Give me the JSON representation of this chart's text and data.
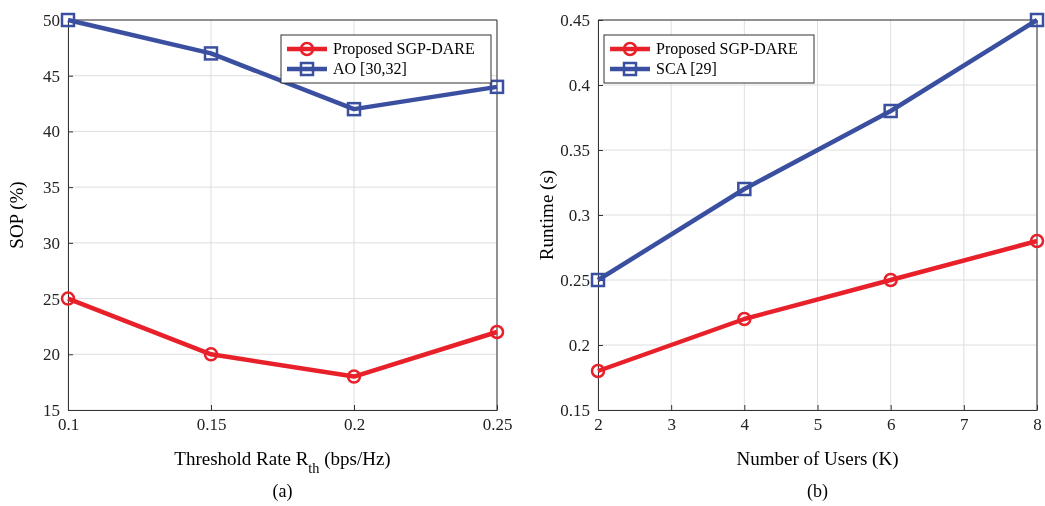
{
  "chart_data": [
    {
      "type": "line",
      "xlabel": "Threshold Rate R$_{th}$ (bps/Hz)",
      "ylabel": "SOP (%)",
      "annotations": [
        "(a)"
      ],
      "x": [
        0.1,
        0.15,
        0.2,
        0.25
      ],
      "xlim": [
        0.1,
        0.25
      ],
      "xticks": [
        0.1,
        0.15,
        0.2,
        0.25
      ],
      "ylim": [
        15,
        50
      ],
      "yticks": [
        15,
        20,
        25,
        30,
        35,
        40,
        45,
        50
      ],
      "grid": true,
      "legend": "top right",
      "line_style": "solid",
      "series": [
        {
          "name": "Proposed SGP-DARE",
          "color": "#e8202a",
          "marker": "circle",
          "values": [
            25,
            20,
            18,
            22
          ]
        },
        {
          "name": "AO [30,32]",
          "color": "#3a4fa0",
          "marker": "square",
          "values": [
            50,
            47,
            42,
            44
          ]
        }
      ]
    },
    {
      "type": "line",
      "xlabel": "Number of Users (K)",
      "ylabel": "Runtime (s)",
      "annotations": [
        "(b)"
      ],
      "x": [
        2,
        4,
        6,
        8
      ],
      "xlim": [
        2,
        8
      ],
      "xticks": [
        2,
        3,
        4,
        5,
        6,
        7,
        8
      ],
      "ylim": [
        0.15,
        0.45
      ],
      "yticks": [
        0.15,
        0.2,
        0.25,
        0.3,
        0.35,
        0.4,
        0.45
      ],
      "grid": true,
      "legend": "top left",
      "line_style": "solid",
      "series": [
        {
          "name": "Proposed SGP-DARE",
          "color": "#e8202a",
          "marker": "circle",
          "values": [
            0.18,
            0.22,
            0.25,
            0.28
          ]
        },
        {
          "name": "SCA [29]",
          "color": "#3a4fa0",
          "marker": "square",
          "values": [
            0.25,
            0.32,
            0.38,
            0.45
          ]
        }
      ]
    }
  ]
}
